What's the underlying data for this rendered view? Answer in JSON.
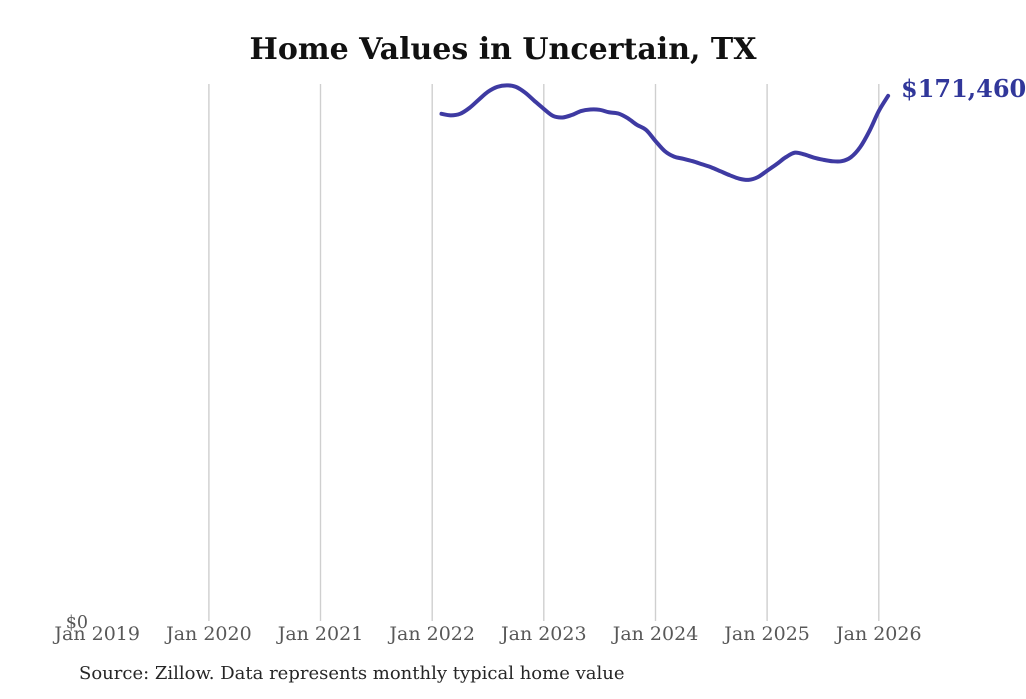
{
  "chart_data": {
    "type": "line",
    "title": "Home Values in Uncertain, TX",
    "source_note": "Source: Zillow. Data represents monthly typical home value",
    "end_label": "$171,460",
    "y_zero_label": "$0",
    "xlabel": "",
    "ylabel": "",
    "ylim": [
      0,
      175600
    ],
    "legend": "none",
    "grid": "vertical-only",
    "x_tick_labels": [
      "Jan 2019",
      "Jan 2020",
      "Jan 2021",
      "Jan 2022",
      "Jan 2023",
      "Jan 2024",
      "Jan 2025",
      "Jan 2026"
    ],
    "x_gridlines": [
      "Jan 2020",
      "Jan 2021",
      "Jan 2022",
      "Jan 2023",
      "Jan 2024",
      "Jan 2025",
      "Jan 2026"
    ],
    "line_color": "#3e3aa2",
    "end_label_color": "#31379a",
    "grid_color": "#cfcfcf",
    "axis_text_color": "#585858",
    "series": [
      {
        "name": "Monthly typical home value",
        "start_month": "Feb 2022",
        "end_month": "Feb 2026",
        "values": [
          165600,
          165100,
          165600,
          167500,
          170200,
          172800,
          174400,
          174900,
          174400,
          172500,
          169800,
          167200,
          164900,
          164400,
          165200,
          166500,
          167000,
          166900,
          166100,
          165700,
          164200,
          162000,
          160300,
          156700,
          153400,
          151600,
          150900,
          150100,
          149100,
          148100,
          146800,
          145500,
          144400,
          144000,
          144900,
          147000,
          149100,
          151400,
          152900,
          152300,
          151300,
          150600,
          150100,
          150100,
          151400,
          154700,
          160000,
          166500,
          171460
        ]
      }
    ]
  }
}
